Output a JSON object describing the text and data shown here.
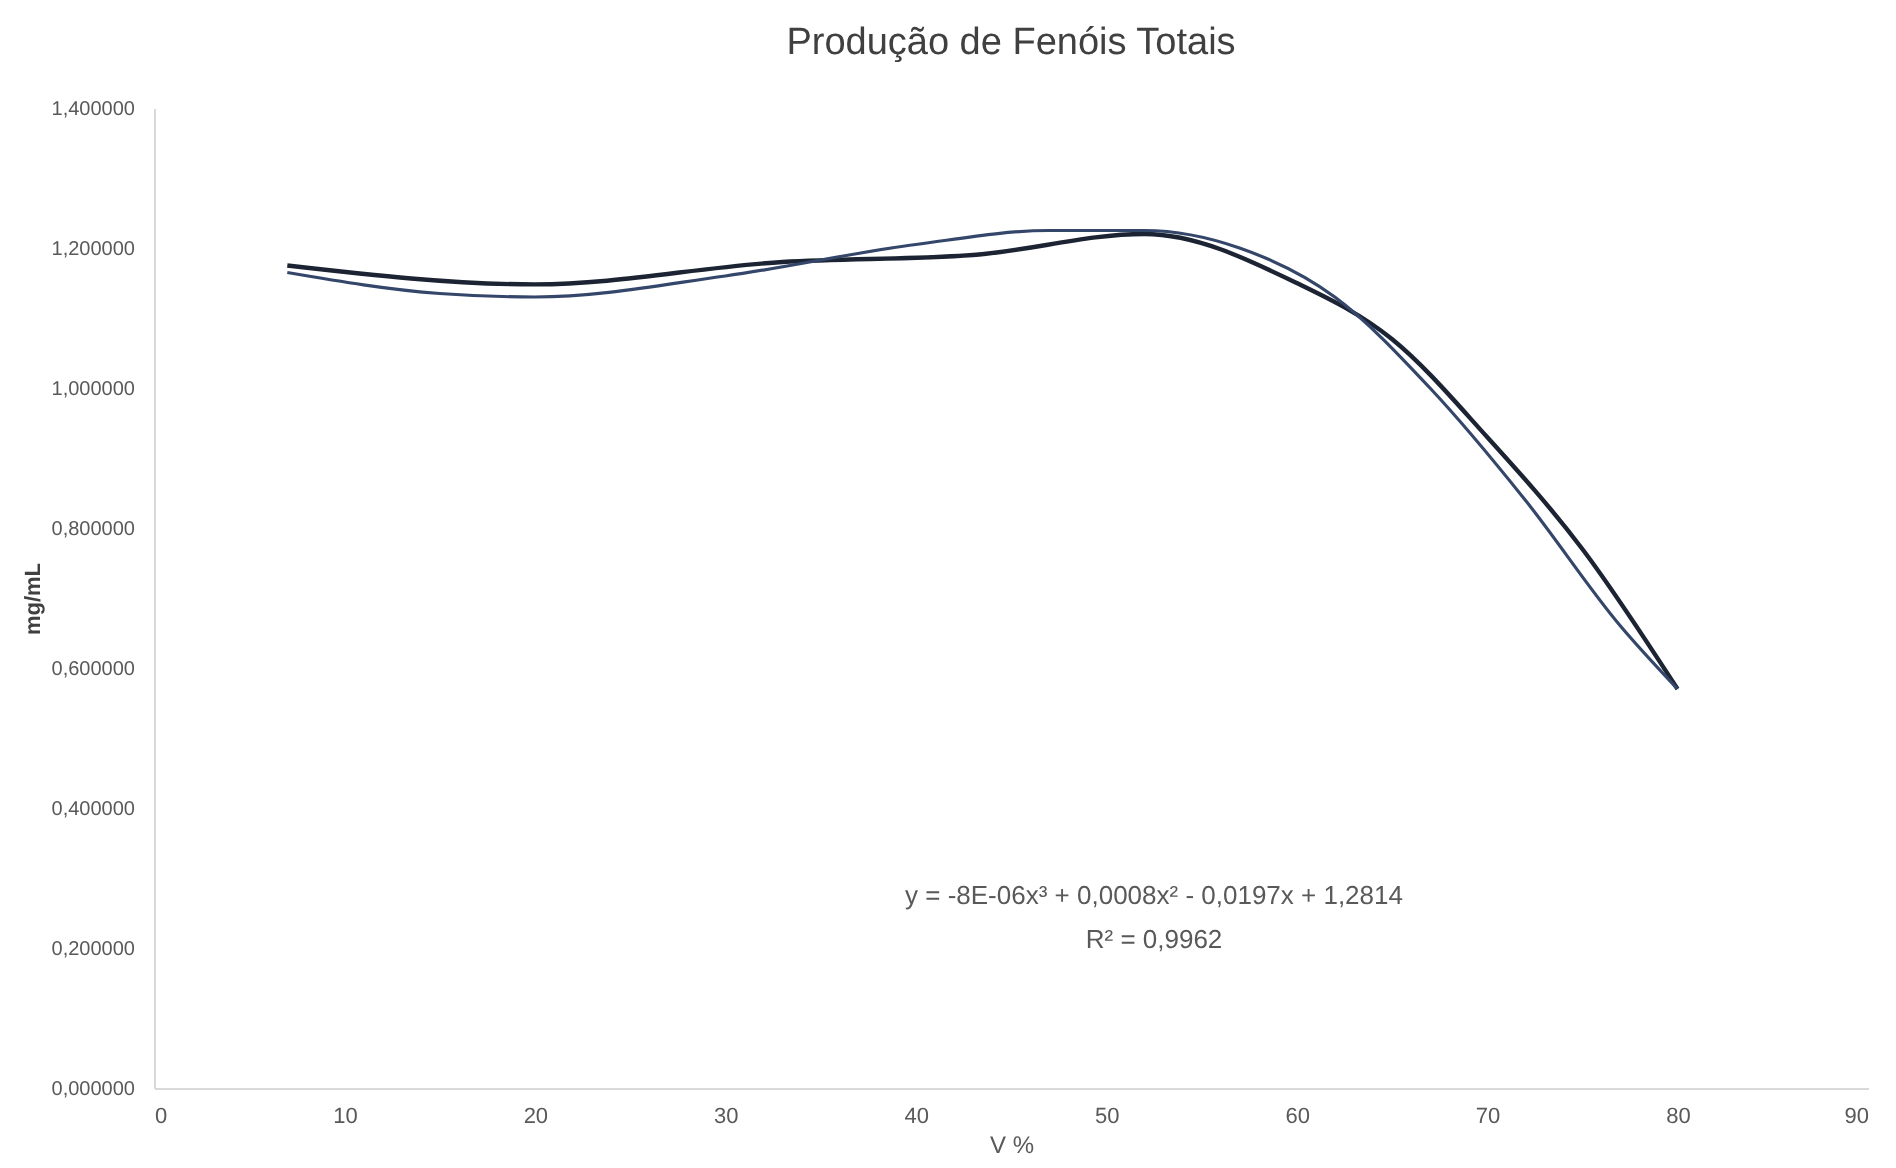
{
  "chart_data": {
    "type": "line",
    "title": "Produção de Fenóis Totais",
    "xlabel": "V %",
    "ylabel": "mg/mL",
    "series": [
      {
        "color": "#1c2433",
        "x": [
          7,
          20,
          33,
          43,
          52,
          60,
          65,
          70,
          75,
          80
        ],
        "values": [
          1.175,
          1.148,
          1.18,
          1.19,
          1.22,
          1.15,
          1.07,
          0.93,
          0.77,
          0.57
        ]
      },
      {
        "color": "#34466a",
        "x": [
          7,
          15,
          20,
          30,
          40,
          47,
          52,
          57,
          62,
          67,
          72,
          77,
          80
        ],
        "values": [
          1.165,
          1.135,
          1.13,
          1.16,
          1.205,
          1.225,
          1.225,
          1.2,
          1.13,
          1.0,
          0.84,
          0.66,
          0.57
        ]
      }
    ],
    "xlim": [
      0,
      90
    ],
    "xticks": [
      0,
      10,
      20,
      30,
      40,
      50,
      60,
      70,
      80,
      90
    ],
    "ylim": [
      0,
      1.4
    ],
    "yticks": [
      {
        "value": 0,
        "label": "0,000000"
      },
      {
        "value": 0.2,
        "label": "0,200000"
      },
      {
        "value": 0.4,
        "label": "0,400000"
      },
      {
        "value": 0.6,
        "label": "0,600000"
      },
      {
        "value": 0.8,
        "label": "0,800000"
      },
      {
        "value": 1.0,
        "label": "1,000000"
      },
      {
        "value": 1.2,
        "label": "1,200000"
      },
      {
        "value": 1.4,
        "label": "1,400000"
      }
    ],
    "annotations": [
      "y = -8E-06x³ + 0,0008x² - 0,0197x + 1,2814",
      "R² = 0,9962"
    ],
    "marker": "none",
    "line_style": "solid"
  }
}
